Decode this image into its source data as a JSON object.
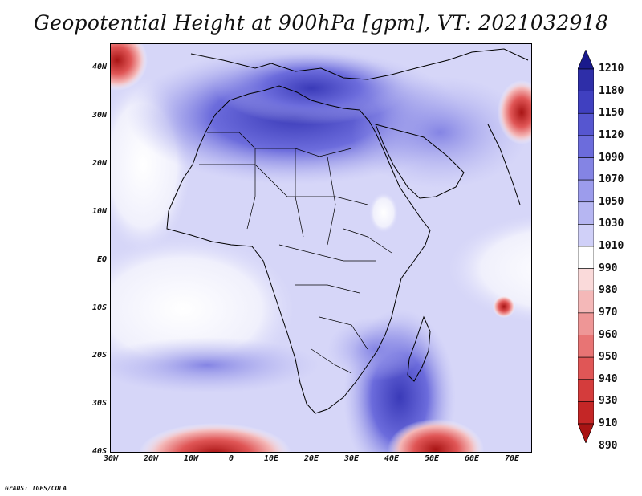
{
  "title": "Geopotential Height at 900hPa [gpm], VT: 2021032918",
  "credit": "GrADS: IGES/COLA",
  "map": {
    "lat_labels": [
      "40N",
      "30N",
      "20N",
      "10N",
      "EQ",
      "10S",
      "20S",
      "30S",
      "40S"
    ],
    "lon_labels": [
      "30W",
      "20W",
      "10W",
      "0",
      "10E",
      "20E",
      "30E",
      "40E",
      "50E",
      "60E",
      "70E"
    ],
    "lon_range": [
      -30,
      75
    ],
    "lat_range": [
      -40,
      45
    ]
  },
  "colorbar": {
    "levels": [
      "1210",
      "1180",
      "1150",
      "1120",
      "1090",
      "1070",
      "1050",
      "1030",
      "1010",
      "990",
      "980",
      "970",
      "960",
      "950",
      "940",
      "930",
      "910",
      "890"
    ],
    "colors": [
      "#1a1a8c",
      "#2e2ea8",
      "#4040c0",
      "#5656d0",
      "#6c6cdc",
      "#8484e4",
      "#9c9cec",
      "#b6b6f2",
      "#d0d0f8",
      "#ffffff",
      "#fadada",
      "#f4b8b8",
      "#ee9696",
      "#e87474",
      "#e05656",
      "#d43c3c",
      "#c42626",
      "#a81414"
    ]
  }
}
